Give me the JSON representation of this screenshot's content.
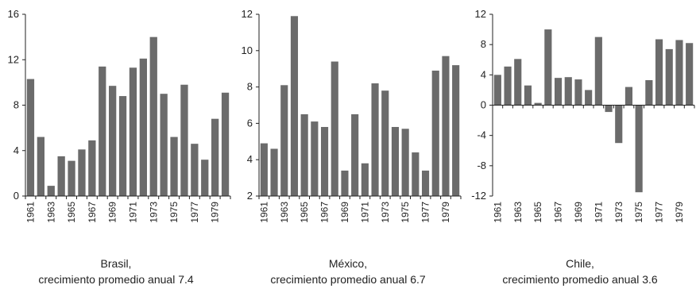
{
  "chart_data": [
    {
      "type": "bar",
      "name": "brasil",
      "caption_line1": "Brasil,",
      "caption_line2": "crecimiento promedio anual 7.4",
      "ylim": [
        0,
        16
      ],
      "yticks": [
        "0",
        "4",
        "8",
        "12",
        "16"
      ],
      "ytick_values": [
        0,
        4,
        8,
        12,
        16
      ],
      "categories": [
        "1961",
        "1962",
        "1963",
        "1964",
        "1965",
        "1966",
        "1967",
        "1968",
        "1969",
        "1970",
        "1971",
        "1972",
        "1973",
        "1974",
        "1975",
        "1976",
        "1977",
        "1978",
        "1979",
        "1980"
      ],
      "xtick_labels": [
        "1961",
        "1963",
        "1965",
        "1967",
        "1969",
        "1971",
        "1973",
        "1975",
        "1977",
        "1979"
      ],
      "values": [
        10.3,
        5.2,
        0.9,
        3.5,
        3.1,
        4.1,
        4.9,
        11.4,
        9.7,
        8.8,
        11.3,
        12.1,
        14.0,
        9.0,
        5.2,
        9.8,
        4.6,
        3.2,
        6.8,
        9.1
      ],
      "color": "#6b6b6b",
      "grid": false
    },
    {
      "type": "bar",
      "name": "mexico",
      "caption_line1": "México,",
      "caption_line2": "crecimiento promedio anual 6.7",
      "ylim": [
        2,
        12
      ],
      "yticks": [
        "2",
        "4",
        "6",
        "8",
        "10",
        "12"
      ],
      "ytick_values": [
        2,
        4,
        6,
        8,
        10,
        12
      ],
      "categories": [
        "1961",
        "1962",
        "1963",
        "1964",
        "1965",
        "1966",
        "1967",
        "1968",
        "1969",
        "1970",
        "1971",
        "1972",
        "1973",
        "1974",
        "1975",
        "1976",
        "1977",
        "1978",
        "1979",
        "1980"
      ],
      "xtick_labels": [
        "1961",
        "1963",
        "1965",
        "1967",
        "1969",
        "1971",
        "1973",
        "1975",
        "1977",
        "1979"
      ],
      "values": [
        4.9,
        4.6,
        8.1,
        11.9,
        6.5,
        6.1,
        5.8,
        9.4,
        3.4,
        6.5,
        3.8,
        8.2,
        7.8,
        5.8,
        5.7,
        4.4,
        3.4,
        8.9,
        9.7,
        9.2
      ],
      "color": "#6b6b6b",
      "grid": false
    },
    {
      "type": "bar",
      "name": "chile",
      "caption_line1": "Chile,",
      "caption_line2": "crecimiento promedio anual 3.6",
      "ylim": [
        -12,
        12
      ],
      "yticks": [
        "-12",
        "-8",
        "-4",
        "0",
        "4",
        "8",
        "12"
      ],
      "ytick_values": [
        -12,
        -8,
        -4,
        0,
        4,
        8,
        12
      ],
      "categories": [
        "1961",
        "1962",
        "1963",
        "1964",
        "1965",
        "1966",
        "1967",
        "1968",
        "1969",
        "1970",
        "1971",
        "1972",
        "1973",
        "1974",
        "1975",
        "1976",
        "1977",
        "1978",
        "1979",
        "1980"
      ],
      "xtick_labels": [
        "1961",
        "1963",
        "1965",
        "1967",
        "1969",
        "1971",
        "1973",
        "1975",
        "1977",
        "1979"
      ],
      "values": [
        4.0,
        5.1,
        6.1,
        2.6,
        0.3,
        10.0,
        3.6,
        3.7,
        3.4,
        2.0,
        9.0,
        -0.9,
        -5.0,
        2.4,
        -11.5,
        3.3,
        8.7,
        7.4,
        8.6,
        8.2
      ],
      "color": "#6b6b6b",
      "grid": false
    }
  ]
}
